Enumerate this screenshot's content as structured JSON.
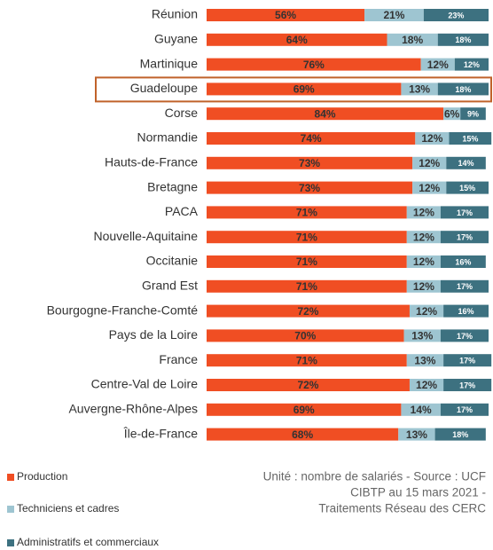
{
  "chart_data": {
    "type": "stacked-barh",
    "categories": [
      "Réunion",
      "Guyane",
      "Martinique",
      "Guadeloupe",
      "Corse",
      "Normandie",
      "Hauts-de-France",
      "Bretagne",
      "PACA",
      "Nouvelle-Aquitaine",
      "Occitanie",
      "Grand Est",
      "Bourgogne-Franche-Comté",
      "Pays de la Loire",
      "France",
      "Centre-Val de Loire",
      "Auvergne-Rhône-Alpes",
      "Île-de-France"
    ],
    "series": [
      {
        "name": "Production",
        "color": "#f04e23",
        "values": [
          56,
          64,
          76,
          69,
          84,
          74,
          73,
          73,
          71,
          71,
          71,
          71,
          72,
          70,
          71,
          72,
          69,
          68
        ],
        "value_labels": [
          "56%",
          "64%",
          "76%",
          "69%",
          "84%",
          "74%",
          "73%",
          "73%",
          "71%",
          "71%",
          "71%",
          "71%",
          "72%",
          "70%",
          "71%",
          "72%",
          "69%",
          "68%"
        ]
      },
      {
        "name": "Techniciens et cadres",
        "color": "#9ec5d1",
        "values": [
          21,
          18,
          12,
          13,
          6,
          12,
          12,
          12,
          12,
          12,
          12,
          12,
          12,
          13,
          13,
          12,
          14,
          13
        ],
        "value_labels": [
          "21%",
          "18%",
          "12%",
          "13%",
          "6%",
          "12%",
          "12%",
          "12%",
          "12%",
          "12%",
          "12%",
          "12%",
          "12%",
          "13%",
          "13%",
          "12%",
          "14%",
          "13%"
        ]
      },
      {
        "name": "Administratifs et commerciaux",
        "color": "#3d7180",
        "values": [
          23,
          18,
          12,
          18,
          9,
          15,
          14,
          15,
          17,
          17,
          16,
          17,
          16,
          17,
          17,
          17,
          17,
          18
        ],
        "value_labels": [
          "23%",
          "18%",
          "12%",
          "18%",
          "9%",
          "15%",
          "14%",
          "15%",
          "17%",
          "17%",
          "16%",
          "17%",
          "16%",
          "17%",
          "17%",
          "17%",
          "17%",
          "18%"
        ]
      }
    ],
    "highlight": 3,
    "note": [
      "Unité : nombre de salariés - Source : UCF",
      "CIBTP au 15 mars 2021 -",
      "Traitements Réseau des CERC"
    ]
  }
}
